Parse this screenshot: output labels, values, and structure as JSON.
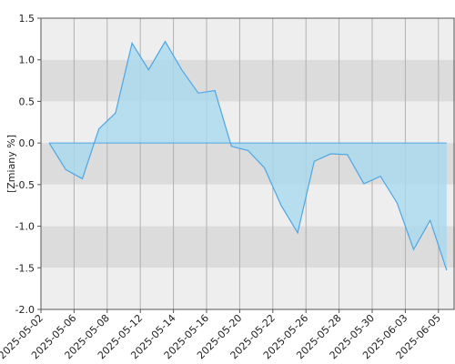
{
  "chart_data": {
    "type": "area",
    "y_label": "[Zmiany %]",
    "x": [
      0.5,
      1.5,
      2.5,
      3.5,
      4.5,
      5.5,
      6.5,
      7.5,
      8.5,
      9.5,
      10.5,
      11.5,
      12.5,
      13.5,
      14.5,
      15.5,
      16.5,
      17.5,
      18.5,
      19.5,
      20.5,
      21.5,
      22.5,
      23.5,
      24.5
    ],
    "values": [
      0.0,
      -0.32,
      -0.43,
      0.17,
      0.36,
      1.2,
      0.88,
      1.22,
      0.88,
      0.6,
      0.63,
      -0.04,
      -0.09,
      -0.3,
      -0.75,
      -1.08,
      -0.22,
      -0.13,
      -0.14,
      -0.49,
      -0.4,
      -0.72,
      -1.28,
      -0.93,
      -1.53
    ],
    "line_color": "#4da6e6",
    "fill_color": "#a9d9ee",
    "xlim": [
      0,
      25
    ],
    "xticks": [
      {
        "value": 0,
        "label": "2025-05-02"
      },
      {
        "value": 2,
        "label": "2025-05-06"
      },
      {
        "value": 4,
        "label": "2025-05-08"
      },
      {
        "value": 6,
        "label": "2025-05-12"
      },
      {
        "value": 8,
        "label": "2025-05-14"
      },
      {
        "value": 10,
        "label": "2025-05-16"
      },
      {
        "value": 12,
        "label": "2025-05-20"
      },
      {
        "value": 14,
        "label": "2025-05-22"
      },
      {
        "value": 16,
        "label": "2025-05-26"
      },
      {
        "value": 18,
        "label": "2025-05-28"
      },
      {
        "value": 20,
        "label": "2025-05-30"
      },
      {
        "value": 22,
        "label": "2025-06-03"
      },
      {
        "value": 24,
        "label": "2025-06-05"
      }
    ],
    "ylim": [
      -2.0,
      1.5
    ],
    "yticks": [
      1.5,
      {
        "value": 1.0,
        "label": "1.0"
      },
      0.5,
      {
        "value": 0.0,
        "label": "0.0"
      },
      -0.5,
      {
        "value": -1.0,
        "label": "-1.0"
      },
      -1.5,
      {
        "value": -2.0,
        "label": "-2.0"
      }
    ],
    "grid": true
  }
}
